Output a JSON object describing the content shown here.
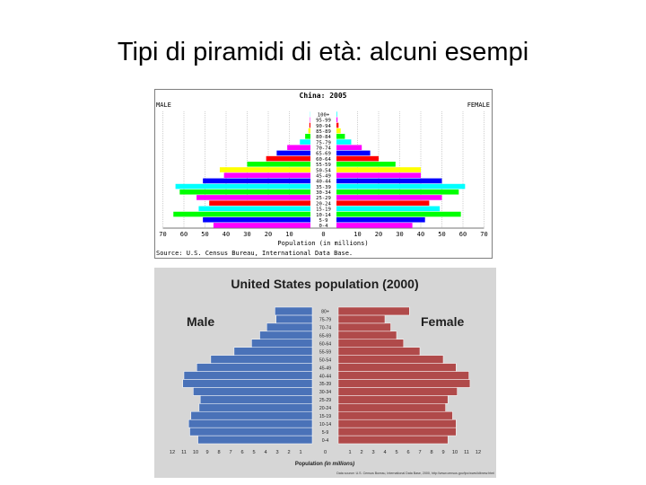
{
  "slide": {
    "title": "Tipi di piramidi di età: alcuni esempi"
  },
  "chart_data": [
    {
      "type": "bar",
      "subtype": "population-pyramid",
      "title": "China: 2005",
      "left_label": "MALE",
      "right_label": "FEMALE",
      "xlabel": "Population (in millions)",
      "source": "Source: U.S. Census Bureau, International Data Base.",
      "xlim": [
        0,
        70
      ],
      "ticks": [
        70,
        60,
        50,
        40,
        30,
        20,
        10,
        0,
        10,
        20,
        30,
        40,
        50,
        60,
        70
      ],
      "grid": true,
      "categories": [
        "0-4",
        "5-9",
        "10-14",
        "15-19",
        "20-24",
        "25-29",
        "30-34",
        "35-39",
        "40-44",
        "45-49",
        "50-54",
        "55-59",
        "60-64",
        "65-69",
        "70-74",
        "75-79",
        "80-84",
        "85-89",
        "90-94",
        "95-99",
        "100+"
      ],
      "series": [
        {
          "name": "MALE",
          "values": [
            46,
            51,
            65,
            53,
            48,
            54,
            62,
            64,
            51,
            41,
            43,
            30,
            21,
            16,
            11,
            5,
            2.5,
            1,
            0.5,
            0.2,
            0.1
          ]
        },
        {
          "name": "FEMALE",
          "values": [
            36,
            42,
            59,
            49,
            44,
            50,
            58,
            61,
            50,
            40,
            40,
            28,
            20,
            16,
            12,
            7,
            4,
            2,
            1,
            0.5,
            0.3
          ]
        }
      ],
      "colors": [
        "#ff00ff",
        "#0000ff",
        "#00ff00",
        "#00ffff",
        "#ff0000",
        "#ff00ff",
        "#00ff00",
        "#00ffff",
        "#0000ff",
        "#ff00ff",
        "#ffff00",
        "#00ff00",
        "#ff0000",
        "#0000ff",
        "#ff00ff",
        "#00ffff",
        "#00ff00",
        "#ffff00",
        "#ff0000",
        "#ff00ff",
        "#00ffff"
      ]
    },
    {
      "type": "bar",
      "subtype": "population-pyramid",
      "title": "United States population (2000)",
      "left_label": "Male",
      "right_label": "Female",
      "xlabel_prefix": "Population ",
      "xlabel_italic": "(in millions)",
      "source": "Data source: U.S. Census Bureau, International Data Base, 2000, http://www.census.gov/ipc/www/idbnew.html",
      "xlim": [
        0,
        12
      ],
      "ticks": [
        12,
        11,
        10,
        9,
        8,
        7,
        6,
        5,
        4,
        3,
        2,
        1,
        0,
        1,
        2,
        3,
        4,
        5,
        6,
        7,
        8,
        9,
        10,
        11,
        12
      ],
      "categories": [
        "0-4",
        "5-9",
        "10-14",
        "15-19",
        "20-24",
        "25-29",
        "30-34",
        "35-39",
        "40-44",
        "45-49",
        "50-54",
        "55-59",
        "60-64",
        "65-69",
        "70-74",
        "75-79",
        "80+"
      ],
      "series": [
        {
          "name": "Male",
          "values": [
            9.8,
            10.5,
            10.6,
            10.4,
            9.7,
            9.6,
            10.2,
            11.1,
            11.0,
            9.9,
            8.7,
            6.7,
            5.2,
            4.5,
            3.9,
            3.1,
            3.2
          ]
        },
        {
          "name": "Female",
          "values": [
            9.4,
            10.1,
            10.1,
            9.8,
            9.2,
            9.4,
            10.2,
            11.3,
            11.2,
            10.1,
            9.0,
            7.0,
            5.6,
            5.0,
            4.5,
            4.0,
            6.1
          ]
        }
      ],
      "colors": {
        "male": "#4a72b8",
        "female": "#b04a4a"
      }
    }
  ]
}
